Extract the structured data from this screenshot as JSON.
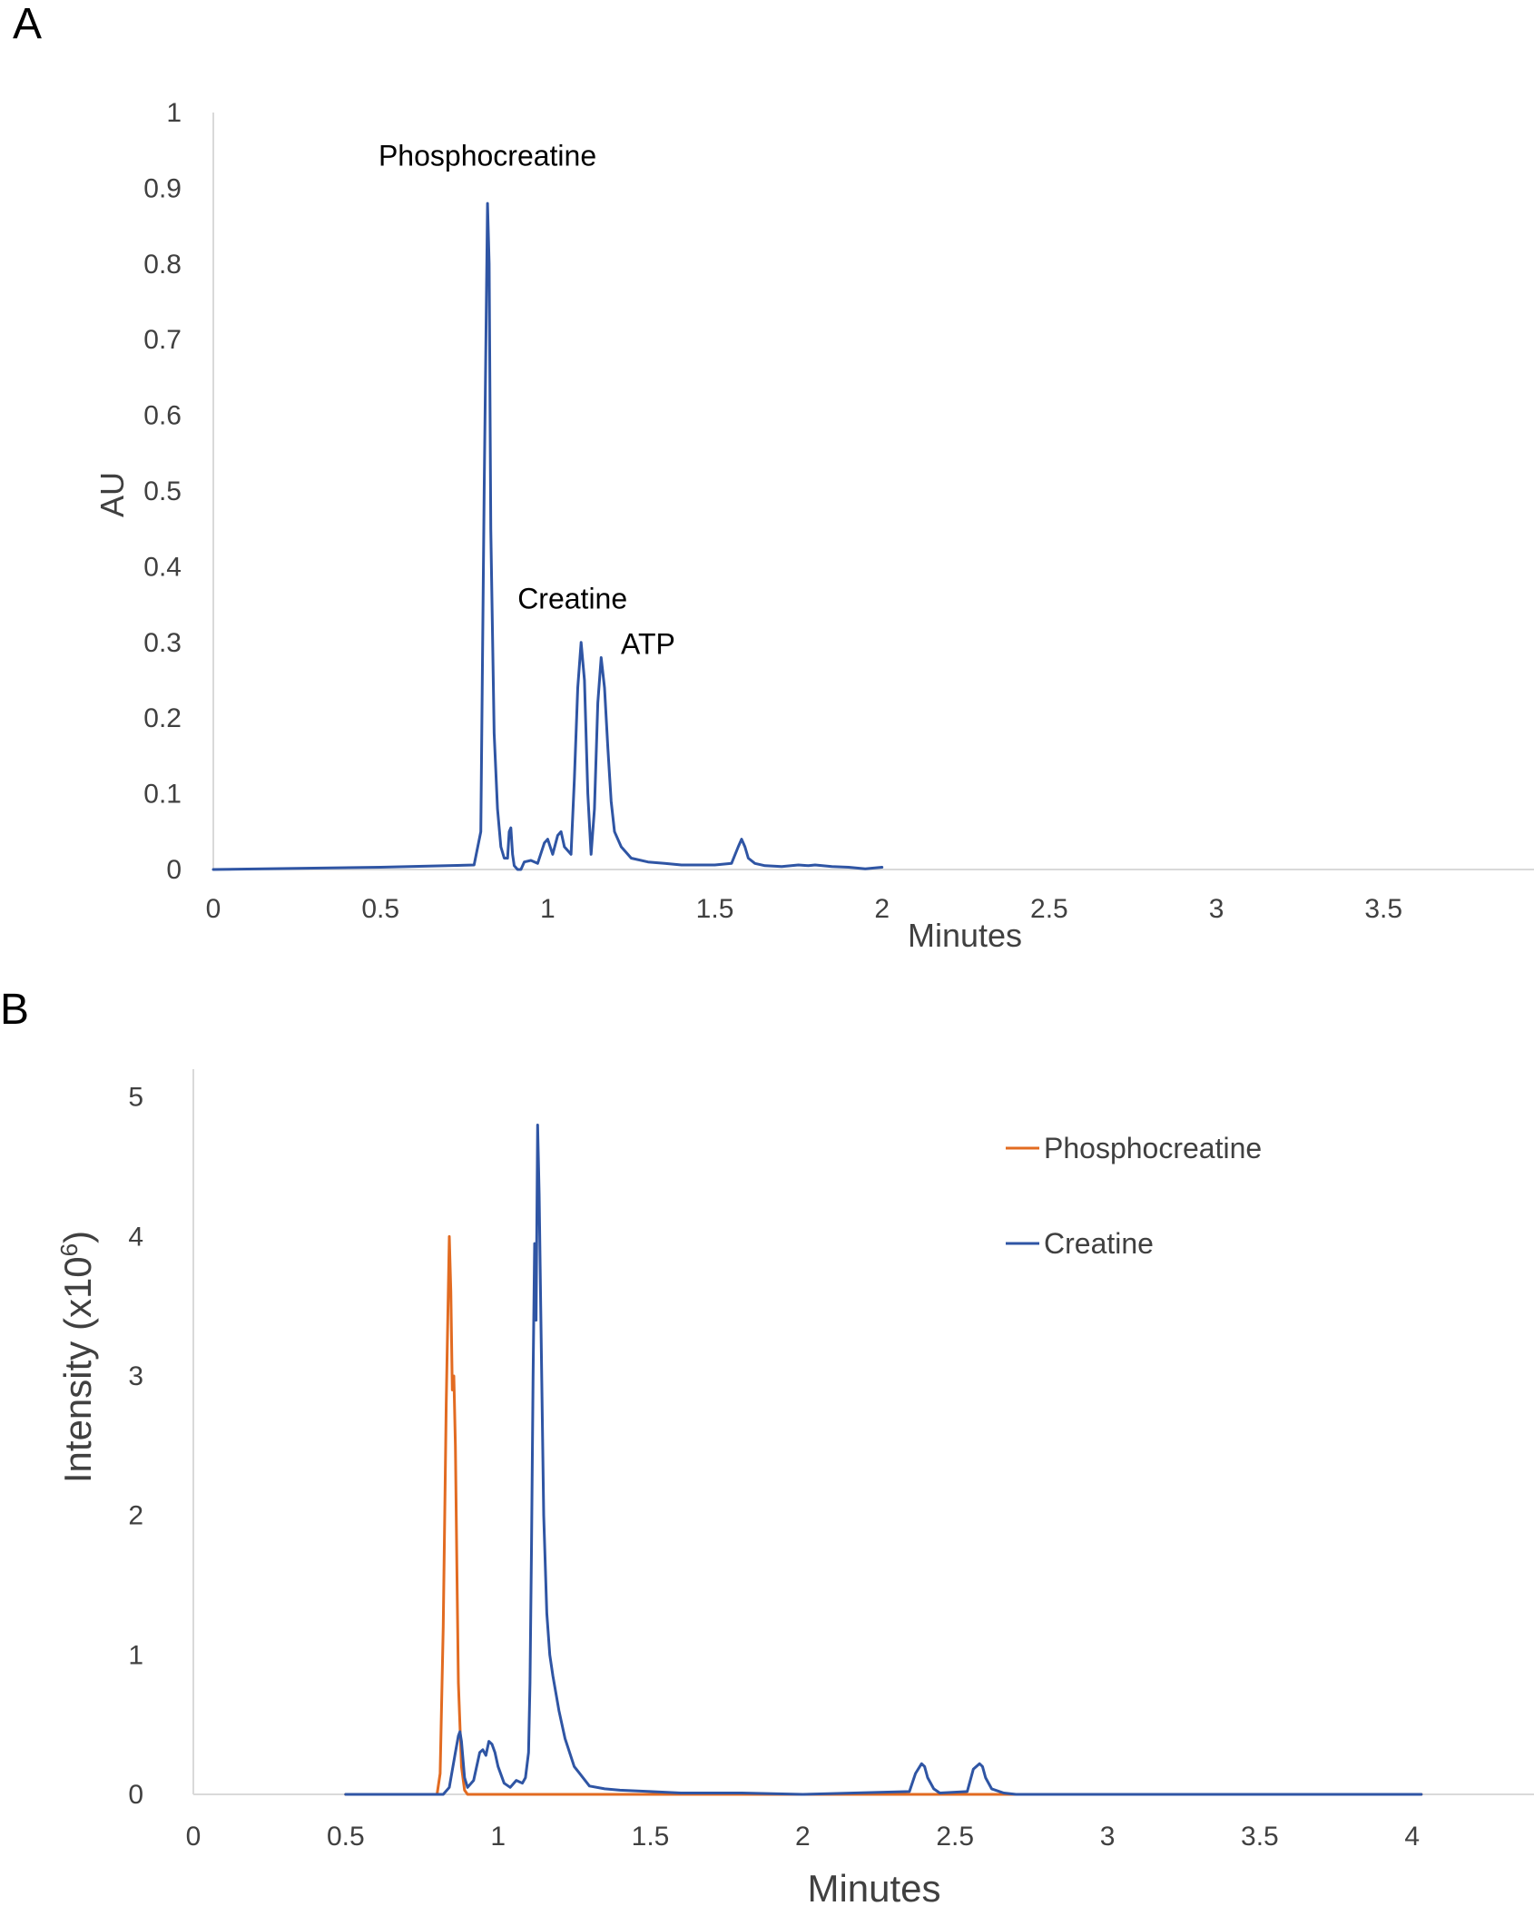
{
  "chart_data": [
    {
      "panel": "A",
      "type": "line",
      "xlabel": "Minutes",
      "ylabel": "AU",
      "xlim": [
        0,
        3.95
      ],
      "ylim": [
        0,
        1
      ],
      "xticks": [
        "0",
        "0.5",
        "1",
        "1.5",
        "2",
        "2.5",
        "3",
        "3.5"
      ],
      "yticks": [
        "0",
        "0.1",
        "0.2",
        "0.3",
        "0.4",
        "0.5",
        "0.6",
        "0.7",
        "0.8",
        "0.9",
        "1"
      ],
      "grid": false,
      "annotations": [
        {
          "text": "Phosphocreatine",
          "x": 0.82,
          "y": 0.93
        },
        {
          "text": "Creatine",
          "x": 1.1,
          "y": 0.345
        },
        {
          "text": "ATP",
          "x": 1.2,
          "y": 0.285
        }
      ],
      "series": [
        {
          "color": "#2f55a4",
          "x": [
            0,
            0.5,
            0.78,
            0.8,
            0.81,
            0.82,
            0.825,
            0.83,
            0.84,
            0.85,
            0.86,
            0.87,
            0.88,
            0.885,
            0.89,
            0.895,
            0.9,
            0.91,
            0.92,
            0.93,
            0.95,
            0.97,
            0.99,
            1.0,
            1.015,
            1.03,
            1.04,
            1.05,
            1.07,
            1.08,
            1.09,
            1.1,
            1.11,
            1.12,
            1.13,
            1.14,
            1.15,
            1.16,
            1.17,
            1.18,
            1.19,
            1.2,
            1.22,
            1.25,
            1.3,
            1.35,
            1.4,
            1.45,
            1.5,
            1.55,
            1.57,
            1.58,
            1.59,
            1.6,
            1.62,
            1.65,
            1.7,
            1.75,
            1.78,
            1.8,
            1.85,
            1.9,
            1.95,
            2.0
          ],
          "y": [
            0.0,
            0.003,
            0.006,
            0.05,
            0.5,
            0.88,
            0.8,
            0.45,
            0.18,
            0.08,
            0.03,
            0.015,
            0.015,
            0.05,
            0.055,
            0.02,
            0.005,
            0.0,
            0.0,
            0.01,
            0.012,
            0.008,
            0.035,
            0.04,
            0.02,
            0.045,
            0.05,
            0.03,
            0.02,
            0.12,
            0.24,
            0.3,
            0.25,
            0.1,
            0.02,
            0.08,
            0.22,
            0.28,
            0.24,
            0.16,
            0.09,
            0.05,
            0.03,
            0.015,
            0.01,
            0.008,
            0.006,
            0.006,
            0.006,
            0.008,
            0.03,
            0.04,
            0.03,
            0.015,
            0.008,
            0.005,
            0.004,
            0.006,
            0.005,
            0.006,
            0.004,
            0.003,
            0.001,
            0.003
          ]
        }
      ]
    },
    {
      "panel": "B",
      "type": "line",
      "xlabel": "Minutes",
      "ylabel": "Intensity (x10",
      "ylabel_sup": "6",
      "ylabel_end": ")",
      "xlim": [
        0,
        4.4
      ],
      "ylim": [
        0,
        5.2
      ],
      "xticks": [
        "0",
        "0.5",
        "1",
        "1.5",
        "2",
        "2.5",
        "3",
        "3.5",
        "4"
      ],
      "yticks": [
        "0",
        "1",
        "2",
        "3",
        "4",
        "5"
      ],
      "grid": false,
      "legend_position": "top-right",
      "series": [
        {
          "name": "Phosphocreatine",
          "color": "#e26b21",
          "x": [
            0.5,
            0.8,
            0.81,
            0.82,
            0.83,
            0.84,
            0.845,
            0.85,
            0.855,
            0.86,
            0.865,
            0.87,
            0.88,
            0.89,
            0.9,
            1.0,
            4.03
          ],
          "y": [
            0,
            0,
            0.15,
            1.2,
            2.8,
            4.0,
            3.6,
            2.9,
            3.0,
            2.5,
            1.6,
            0.8,
            0.2,
            0.03,
            0,
            0,
            0
          ]
        },
        {
          "name": "Creatine",
          "color": "#2f55a4",
          "x": [
            0.5,
            0.82,
            0.84,
            0.86,
            0.87,
            0.875,
            0.88,
            0.89,
            0.9,
            0.92,
            0.94,
            0.95,
            0.96,
            0.97,
            0.98,
            0.99,
            1.0,
            1.02,
            1.04,
            1.06,
            1.08,
            1.09,
            1.1,
            1.105,
            1.11,
            1.115,
            1.12,
            1.125,
            1.13,
            1.135,
            1.14,
            1.15,
            1.16,
            1.17,
            1.18,
            1.2,
            1.22,
            1.25,
            1.3,
            1.35,
            1.4,
            1.5,
            1.6,
            1.8,
            2.0,
            2.35,
            2.37,
            2.39,
            2.4,
            2.41,
            2.43,
            2.45,
            2.54,
            2.56,
            2.58,
            2.59,
            2.6,
            2.62,
            2.66,
            2.7,
            4.03
          ],
          "y": [
            0,
            0,
            0.05,
            0.3,
            0.42,
            0.45,
            0.38,
            0.12,
            0.05,
            0.1,
            0.3,
            0.32,
            0.28,
            0.38,
            0.36,
            0.3,
            0.2,
            0.08,
            0.05,
            0.1,
            0.08,
            0.12,
            0.3,
            0.8,
            1.8,
            3.0,
            3.95,
            3.4,
            4.8,
            4.3,
            3.5,
            2.0,
            1.3,
            1.0,
            0.85,
            0.6,
            0.4,
            0.2,
            0.06,
            0.04,
            0.03,
            0.02,
            0.01,
            0.01,
            0,
            0.02,
            0.15,
            0.22,
            0.2,
            0.12,
            0.04,
            0.01,
            0.02,
            0.18,
            0.22,
            0.2,
            0.12,
            0.04,
            0.01,
            0,
            0
          ]
        }
      ]
    }
  ]
}
